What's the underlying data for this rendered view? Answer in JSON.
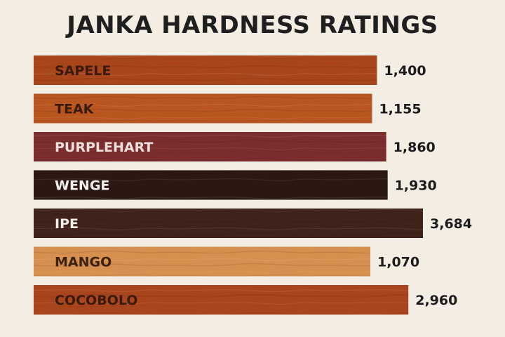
{
  "chart_data": {
    "type": "bar",
    "orientation": "horizontal",
    "title": "JANKA HARDNESS RATINGS",
    "categories": [
      "SAPELE",
      "TEAK",
      "PURPLEHART",
      "WENGE",
      "IPE",
      "MANGO",
      "COCOBOLO"
    ],
    "values": [
      1400,
      1155,
      1860,
      1930,
      3684,
      1070,
      2960
    ],
    "value_labels": [
      "1,400",
      "1,155",
      "1,860",
      "1,930",
      "3,684",
      "1,070",
      "2,960"
    ],
    "bar_colors": [
      "#a8451b",
      "#b9561f",
      "#7c2d2d",
      "#2c1813",
      "#3f2219",
      "#d68f4e",
      "#a9451d"
    ],
    "label_colors": [
      "#3a1a0c",
      "#3a1a0c",
      "#f0e0dc",
      "#f3eeea",
      "#f3eeea",
      "#3a220f",
      "#3a1a0c"
    ],
    "axes_visible": false,
    "grid": false,
    "legend": "none"
  }
}
